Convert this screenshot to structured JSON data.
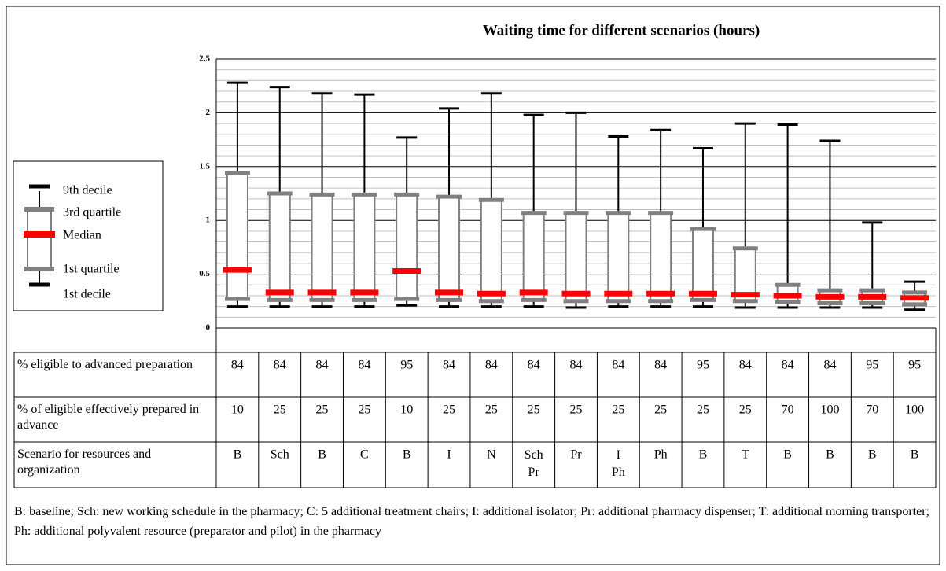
{
  "chart_data": {
    "type": "box",
    "title": "Waiting time for different scenarios (hours)",
    "ylim": [
      0,
      2.5
    ],
    "yticks": [
      0,
      0.5,
      1,
      1.5,
      2,
      2.5
    ],
    "minor_yticks": [
      0.1,
      0.2,
      0.3,
      0.4,
      0.6,
      0.7,
      0.8,
      0.9,
      1.1,
      1.2,
      1.3,
      1.4,
      1.6,
      1.7,
      1.8,
      1.9,
      2.1,
      2.2,
      2.3,
      2.4
    ],
    "grid": true,
    "colors": {
      "box": "#808080",
      "median": "#ff0000",
      "whisker": "#000000"
    },
    "legend": [
      "9th decile",
      "3rd quartile",
      "Median",
      "1st quartile",
      "1st decile"
    ],
    "boxes": [
      {
        "low": 0.2,
        "q1": 0.27,
        "median": 0.54,
        "q3": 1.44,
        "high": 2.28
      },
      {
        "low": 0.2,
        "q1": 0.26,
        "median": 0.33,
        "q3": 1.25,
        "high": 2.24
      },
      {
        "low": 0.2,
        "q1": 0.26,
        "median": 0.33,
        "q3": 1.24,
        "high": 2.18
      },
      {
        "low": 0.2,
        "q1": 0.26,
        "median": 0.33,
        "q3": 1.24,
        "high": 2.17
      },
      {
        "low": 0.21,
        "q1": 0.27,
        "median": 0.53,
        "q3": 1.24,
        "high": 1.77
      },
      {
        "low": 0.2,
        "q1": 0.26,
        "median": 0.33,
        "q3": 1.22,
        "high": 2.04
      },
      {
        "low": 0.2,
        "q1": 0.25,
        "median": 0.32,
        "q3": 1.19,
        "high": 2.18
      },
      {
        "low": 0.2,
        "q1": 0.26,
        "median": 0.33,
        "q3": 1.07,
        "high": 1.98
      },
      {
        "low": 0.19,
        "q1": 0.25,
        "median": 0.32,
        "q3": 1.07,
        "high": 2.0
      },
      {
        "low": 0.2,
        "q1": 0.25,
        "median": 0.32,
        "q3": 1.07,
        "high": 1.78
      },
      {
        "low": 0.2,
        "q1": 0.25,
        "median": 0.32,
        "q3": 1.07,
        "high": 1.84
      },
      {
        "low": 0.2,
        "q1": 0.26,
        "median": 0.32,
        "q3": 0.92,
        "high": 1.67
      },
      {
        "low": 0.19,
        "q1": 0.25,
        "median": 0.31,
        "q3": 0.74,
        "high": 1.9
      },
      {
        "low": 0.19,
        "q1": 0.24,
        "median": 0.3,
        "q3": 0.4,
        "high": 1.89
      },
      {
        "low": 0.19,
        "q1": 0.23,
        "median": 0.29,
        "q3": 0.35,
        "high": 1.74
      },
      {
        "low": 0.19,
        "q1": 0.23,
        "median": 0.29,
        "q3": 0.35,
        "high": 0.98
      },
      {
        "low": 0.17,
        "q1": 0.22,
        "median": 0.28,
        "q3": 0.33,
        "high": 0.43
      }
    ],
    "table": [
      {
        "label": "% eligible  to advanced preparation",
        "values": [
          84,
          84,
          84,
          84,
          95,
          84,
          84,
          84,
          84,
          84,
          84,
          95,
          84,
          84,
          84,
          95,
          95
        ]
      },
      {
        "label": "% of eligible  effectively prepared in advance",
        "values": [
          10,
          25,
          25,
          25,
          10,
          25,
          25,
          25,
          25,
          25,
          25,
          25,
          25,
          70,
          100,
          70,
          100
        ]
      },
      {
        "label": "Scenario for resources and organization",
        "values": [
          "B",
          "Sch",
          "B",
          "C",
          "B",
          "I",
          "N",
          "Sch Pr",
          "Pr",
          "I Ph",
          "Ph",
          "B",
          "T",
          "B",
          "B",
          "B",
          "B"
        ]
      }
    ],
    "footnote": "B:  baseline;  Sch: new working schedule in the pharmacy; C:  5 additional  treatment chairs; I:  additional isolator; Pr: additional  pharmacy dispenser; T:  additional  morning transporter; Ph: additional  polyvalent  resource (preparator and pilot)  in the pharmacy"
  }
}
